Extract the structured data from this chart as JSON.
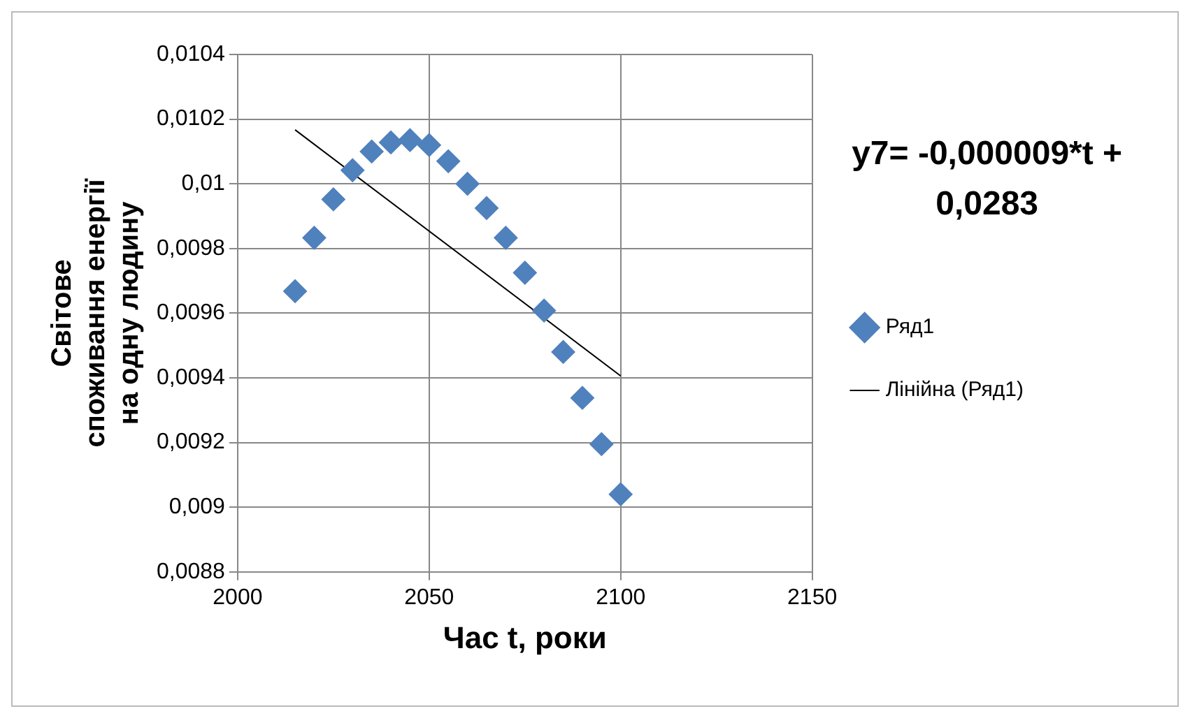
{
  "chart_data": {
    "type": "scatter",
    "xlabel": "Час t, роки",
    "ylabel": "Світове споживання енергії на одну людину",
    "annotations": [
      "y7= -0,000009*t + 0,0283"
    ],
    "xlim": [
      2000,
      2150
    ],
    "xticks": [
      2000,
      2050,
      2100,
      2150
    ],
    "ylim": [
      0.0088,
      0.0104
    ],
    "yticks": [
      {
        "value": 0.0088,
        "label": "0,0088"
      },
      {
        "value": 0.009,
        "label": "0,009"
      },
      {
        "value": 0.0092,
        "label": "0,0092"
      },
      {
        "value": 0.0094,
        "label": "0,0094"
      },
      {
        "value": 0.0096,
        "label": "0,0096"
      },
      {
        "value": 0.0098,
        "label": "0,0098"
      },
      {
        "value": 0.01,
        "label": "0,01"
      },
      {
        "value": 0.0102,
        "label": "0,0102"
      },
      {
        "value": 0.0104,
        "label": "0,0104"
      }
    ],
    "grid": true,
    "legend": "right",
    "marker": "diamond",
    "series": [
      {
        "name": "Ряд1",
        "color": "#4f81bd",
        "x": [
          2015,
          2020,
          2025,
          2030,
          2035,
          2040,
          2045,
          2050,
          2055,
          2060,
          2065,
          2070,
          2075,
          2080,
          2085,
          2090,
          2095,
          2100
        ],
        "values": [
          0.009668,
          0.009833,
          0.009952,
          0.010042,
          0.0101,
          0.010128,
          0.010135,
          0.01012,
          0.01007,
          0.01,
          0.009925,
          0.009833,
          0.009725,
          0.009608,
          0.00948,
          0.009338,
          0.009195,
          0.00904
        ]
      },
      {
        "name": "Лінійна (Ряд1)",
        "type": "line",
        "marker": "none",
        "color": "#000000",
        "x": [
          2015,
          2100
        ],
        "values": [
          0.010167,
          0.009406
        ]
      }
    ]
  }
}
